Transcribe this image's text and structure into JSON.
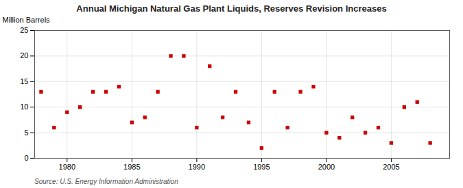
{
  "chart_data": {
    "type": "scatter",
    "title": "Annual Michigan Natural Gas Plant Liquids, Reserves Revision Increases",
    "ylabel": "Million Barrels",
    "annotation": "Source: U.S. Energy Information Administration",
    "x": [
      1978,
      1979,
      1980,
      1981,
      1982,
      1983,
      1984,
      1985,
      1986,
      1987,
      1988,
      1989,
      1990,
      1991,
      1992,
      1993,
      1994,
      1995,
      1996,
      1997,
      1998,
      1999,
      2000,
      2001,
      2002,
      2003,
      2004,
      2005,
      2006,
      2007,
      2008
    ],
    "values": [
      13,
      6,
      9,
      10,
      13,
      13,
      14,
      7,
      8,
      13,
      20,
      20,
      6,
      18,
      8,
      13,
      7,
      2,
      13,
      6,
      13,
      14,
      5,
      4,
      8,
      5,
      6,
      3,
      10,
      11,
      3
    ],
    "color": "#cc0000",
    "marker": "square",
    "xlim": [
      1977.5,
      2009.5
    ],
    "ylim": [
      0,
      25
    ],
    "xticks": [
      1980,
      1985,
      1990,
      1995,
      2000,
      2005
    ],
    "yticks": [
      0,
      5,
      10,
      15,
      20,
      25
    ],
    "grid": true
  }
}
